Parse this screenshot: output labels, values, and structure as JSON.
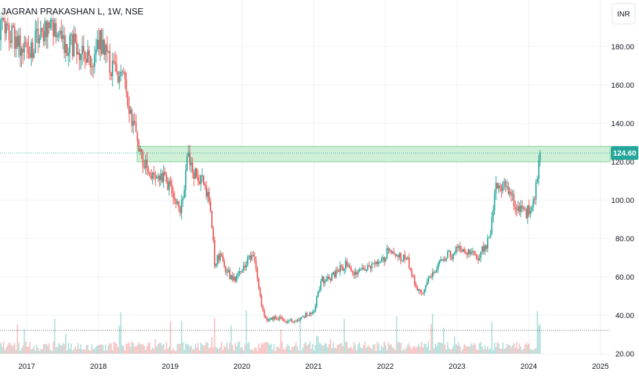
{
  "header": {
    "title": "JAGRAN PRAKASHAN L, 1W, NSE"
  },
  "scale": {
    "currency_button": "INR"
  },
  "colors": {
    "up": "#26a69a",
    "down": "#ef5350",
    "zone_fill": "#c8ecd0",
    "zone_border": "#7cd08f",
    "grid": "#eef0f3",
    "axis_text": "#131722",
    "last_badge": "#26a69a"
  },
  "chart_data": {
    "type": "candlestick",
    "title": "JAGRAN PRAKASHAN L, 1W, NSE",
    "x_ticks": [
      "2017",
      "2018",
      "2019",
      "2020",
      "2021",
      "2022",
      "2023",
      "2024",
      "2025"
    ],
    "y_ticks": [
      "20.00",
      "40.00",
      "60.00",
      "80.00",
      "100.00",
      "120.00",
      "140.00",
      "160.00",
      "180.00"
    ],
    "ylim": [
      20,
      200
    ],
    "xlim": [
      2016.62,
      2025.17
    ],
    "last_price": "124.60",
    "last_price_value": 124.6,
    "resistance_zone": [
      120,
      128
    ],
    "price_path": [
      [
        2016.62,
        190
      ],
      [
        2016.8,
        185
      ],
      [
        2016.95,
        176
      ],
      [
        2017.05,
        178
      ],
      [
        2017.2,
        188
      ],
      [
        2017.35,
        190
      ],
      [
        2017.5,
        182
      ],
      [
        2017.7,
        180
      ],
      [
        2017.85,
        175
      ],
      [
        2017.95,
        170
      ],
      [
        2018.0,
        184
      ],
      [
        2018.1,
        178
      ],
      [
        2018.2,
        168
      ],
      [
        2018.35,
        165
      ],
      [
        2018.45,
        145
      ],
      [
        2018.55,
        128
      ],
      [
        2018.65,
        118
      ],
      [
        2018.8,
        113
      ],
      [
        2018.95,
        110
      ],
      [
        2019.05,
        104
      ],
      [
        2019.15,
        95
      ],
      [
        2019.25,
        125
      ],
      [
        2019.32,
        114
      ],
      [
        2019.45,
        110
      ],
      [
        2019.55,
        100
      ],
      [
        2019.62,
        68
      ],
      [
        2019.7,
        72
      ],
      [
        2019.8,
        62
      ],
      [
        2019.9,
        58
      ],
      [
        2020.0,
        65
      ],
      [
        2020.15,
        73
      ],
      [
        2020.22,
        60
      ],
      [
        2020.28,
        42
      ],
      [
        2020.35,
        38
      ],
      [
        2020.5,
        39
      ],
      [
        2020.65,
        37
      ],
      [
        2020.85,
        39
      ],
      [
        2021.0,
        42
      ],
      [
        2021.1,
        58
      ],
      [
        2021.25,
        60
      ],
      [
        2021.45,
        67
      ],
      [
        2021.6,
        62
      ],
      [
        2021.75,
        64
      ],
      [
        2021.95,
        67
      ],
      [
        2022.05,
        76
      ],
      [
        2022.15,
        70
      ],
      [
        2022.3,
        70
      ],
      [
        2022.4,
        58
      ],
      [
        2022.5,
        50
      ],
      [
        2022.65,
        62
      ],
      [
        2022.8,
        70
      ],
      [
        2022.95,
        72
      ],
      [
        2023.05,
        76
      ],
      [
        2023.15,
        72
      ],
      [
        2023.3,
        70
      ],
      [
        2023.45,
        80
      ],
      [
        2023.55,
        110
      ],
      [
        2023.65,
        108
      ],
      [
        2023.75,
        102
      ],
      [
        2023.85,
        96
      ],
      [
        2023.95,
        92
      ],
      [
        2024.05,
        98
      ],
      [
        2024.12,
        110
      ],
      [
        2024.16,
        124.6
      ]
    ],
    "volume_ylim": [
      0,
      1
    ]
  }
}
